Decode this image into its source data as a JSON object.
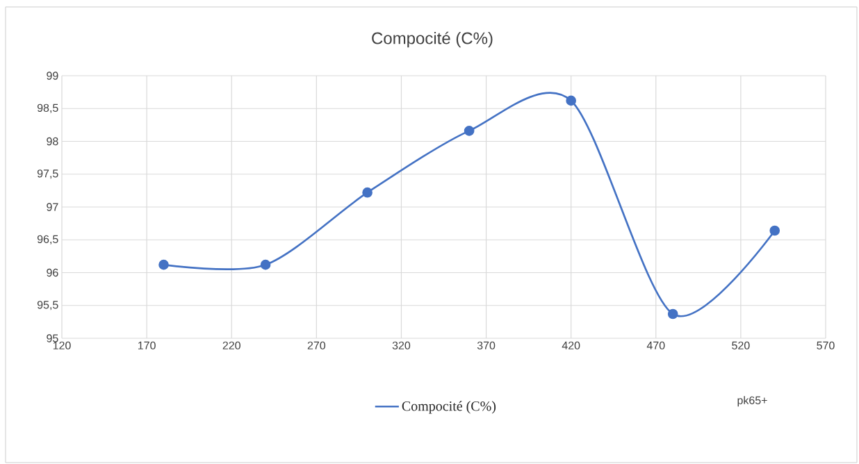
{
  "chart_data": {
    "type": "line",
    "title": "Compocité (C%)",
    "xlabel": "pk65+",
    "x": [
      180,
      240,
      300,
      360,
      420,
      480,
      540
    ],
    "series": [
      {
        "name": "Compocité (C%)",
        "color": "#4472c4",
        "values": [
          96.12,
          96.12,
          97.22,
          98.16,
          98.62,
          95.37,
          96.64
        ]
      }
    ],
    "xlim": [
      120,
      570
    ],
    "xticks": [
      120,
      170,
      220,
      270,
      320,
      370,
      420,
      470,
      520,
      570
    ],
    "ylim": [
      95,
      99
    ],
    "yticks": [
      95,
      {
        "value": 95.5,
        "label": "95,5"
      },
      96,
      {
        "value": 96.5,
        "label": "96,5"
      },
      97,
      {
        "value": 97.5,
        "label": "97,5"
      },
      98,
      {
        "value": 98.5,
        "label": "98,5"
      },
      99
    ],
    "grid": true,
    "legend": "bottom",
    "marker": "circle",
    "line_style": "solid"
  }
}
